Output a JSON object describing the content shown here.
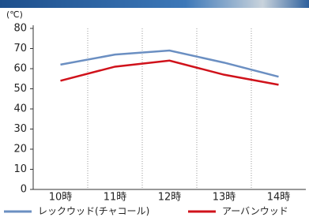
{
  "chart_data": {
    "type": "line",
    "y_unit_label": "(℃)",
    "categories": [
      "10時",
      "11時",
      "12時",
      "13時",
      "14時"
    ],
    "series": [
      {
        "name": "レックウッド(チャコール)",
        "color": "#6b8fc2",
        "values": [
          62,
          67,
          69,
          63,
          56
        ]
      },
      {
        "name": "アーバンウッド",
        "color": "#d0121b",
        "values": [
          54,
          61,
          64,
          57,
          52
        ]
      }
    ],
    "ylim": [
      0,
      80
    ],
    "yticks": [
      0,
      10,
      20,
      30,
      40,
      50,
      60,
      70,
      80
    ]
  }
}
